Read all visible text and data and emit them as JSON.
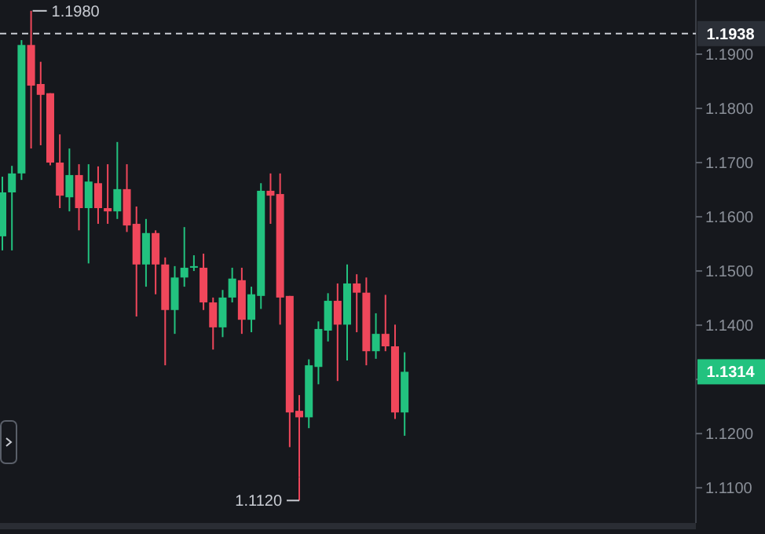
{
  "chart_data": {
    "type": "candlestick",
    "categories": [
      null,
      null,
      null,
      null,
      null,
      null,
      null,
      null,
      null,
      null,
      null,
      null,
      null,
      null,
      null,
      null,
      null,
      null,
      null,
      null,
      null,
      null,
      null,
      null,
      null,
      null,
      null,
      null,
      null,
      null,
      null,
      null,
      null,
      null,
      null,
      null,
      null,
      null,
      null,
      null,
      null,
      null,
      null,
      null,
      null,
      null,
      null,
      null,
      null,
      null,
      null,
      null,
      null,
      null,
      null,
      null,
      null,
      null,
      null,
      null,
      null,
      null,
      null,
      null,
      null,
      null,
      null,
      null,
      null,
      null,
      null,
      null,
      null
    ],
    "ohlc": [
      [
        1.1564,
        1.1674,
        1.1538,
        1.1645
      ],
      [
        1.1645,
        1.1694,
        1.1538,
        1.168
      ],
      [
        1.168,
        1.1926,
        1.1668,
        1.1917
      ],
      [
        1.1917,
        1.198,
        1.1726,
        1.1842
      ],
      [
        1.1845,
        1.1886,
        1.1732,
        1.1825
      ],
      [
        1.1828,
        1.1828,
        1.1695,
        1.17
      ],
      [
        1.17,
        1.1752,
        1.1616,
        1.1639
      ],
      [
        1.1636,
        1.1726,
        1.161,
        1.1677
      ],
      [
        1.1677,
        1.1697,
        1.1575,
        1.1616
      ],
      [
        1.1616,
        1.1697,
        1.1514,
        1.1665
      ],
      [
        1.1662,
        1.1693,
        1.1587,
        1.1616
      ],
      [
        1.1616,
        1.1697,
        1.1587,
        1.161
      ],
      [
        1.161,
        1.1738,
        1.1596,
        1.1651
      ],
      [
        1.1651,
        1.1697,
        1.1572,
        1.1584
      ],
      [
        1.1587,
        1.1619,
        1.1416,
        1.1512
      ],
      [
        1.1512,
        1.1596,
        1.1471,
        1.157
      ],
      [
        1.157,
        1.1575,
        1.1457,
        1.1512
      ],
      [
        1.1512,
        1.1525,
        1.1326,
        1.1428
      ],
      [
        1.1428,
        1.1509,
        1.1384,
        1.1488
      ],
      [
        1.1488,
        1.1581,
        1.1471,
        1.1506
      ],
      [
        1.1506,
        1.1529,
        1.15,
        1.1509
      ],
      [
        1.1506,
        1.1532,
        1.1428,
        1.1442
      ],
      [
        1.1442,
        1.1451,
        1.1355,
        1.1396
      ],
      [
        1.1396,
        1.1465,
        1.1378,
        1.1451
      ],
      [
        1.1451,
        1.1506,
        1.1442,
        1.1486
      ],
      [
        1.1483,
        1.1506,
        1.1384,
        1.141
      ],
      [
        1.141,
        1.1471,
        1.1387,
        1.1457
      ],
      [
        1.1454,
        1.1662,
        1.143,
        1.1648
      ],
      [
        1.1648,
        1.168,
        1.1587,
        1.1639
      ],
      [
        1.1642,
        1.168,
        1.1401,
        1.1451
      ],
      [
        1.1454,
        1.1454,
        1.1175,
        1.1239
      ],
      [
        1.1242,
        1.1271,
        1.112,
        1.123
      ],
      [
        1.123,
        1.1337,
        1.121,
        1.1326
      ],
      [
        1.1323,
        1.1407,
        1.1291,
        1.1393
      ],
      [
        1.139,
        1.1459,
        1.137,
        1.1445
      ],
      [
        1.1445,
        1.1477,
        1.1297,
        1.1401
      ],
      [
        1.1401,
        1.1512,
        1.1335,
        1.1477
      ],
      [
        1.1477,
        1.1494,
        1.1387,
        1.146
      ],
      [
        1.146,
        1.1488,
        1.1326,
        1.1352
      ],
      [
        1.1352,
        1.1422,
        1.1338,
        1.1384
      ],
      [
        1.1384,
        1.1456,
        1.1352,
        1.1361
      ],
      [
        1.1361,
        1.1401,
        1.1227,
        1.1239
      ],
      [
        1.1239,
        1.135,
        1.1196,
        1.1314
      ],
      null,
      null,
      null,
      null,
      null,
      null,
      null,
      null,
      null,
      null,
      null,
      null,
      null,
      null,
      null,
      null,
      null,
      null,
      null,
      null,
      null,
      null,
      null,
      null,
      null,
      null,
      null,
      null,
      null,
      null
    ],
    "colors": [
      "#22c27f",
      "#22c27f",
      "#22c27f",
      "#f0475b",
      "#f0475b",
      "#f0475b",
      "#f0475b",
      "#22c27f",
      "#f0475b",
      "#22c27f",
      "#f0475b",
      "#f0475b",
      "#22c27f",
      "#f0475b",
      "#f0475b",
      "#22c27f",
      "#f0475b",
      "#f0475b",
      "#22c27f",
      "#22c27f",
      "#22c27f",
      "#f0475b",
      "#f0475b",
      "#22c27f",
      "#22c27f",
      "#f0475b",
      "#22c27f",
      "#22c27f",
      "#f0475b",
      "#f0475b",
      "#f0475b",
      "#f0475b",
      "#22c27f",
      "#22c27f",
      "#22c27f",
      "#f0475b",
      "#22c27f",
      "#f0475b",
      "#f0475b",
      "#22c27f",
      "#f0475b",
      "#f0475b",
      "#22c27f",
      null,
      null,
      null,
      null,
      null,
      null,
      null,
      null,
      null,
      null,
      null,
      null,
      null,
      null,
      null,
      null,
      null,
      null,
      null,
      null,
      null,
      null,
      null,
      null,
      null,
      null,
      null,
      null,
      null,
      null
    ],
    "ylim": [
      1.1035,
      1.2
    ],
    "yticks": [
      {
        "value": 1.11,
        "label": "1.1100"
      },
      {
        "value": 1.12,
        "label": "1.1200"
      },
      {
        "value": 1.13,
        "label": null
      },
      {
        "value": 1.14,
        "label": "1.1400"
      },
      {
        "value": 1.15,
        "label": "1.1500"
      },
      {
        "value": 1.16,
        "label": "1.1600"
      },
      {
        "value": 1.17,
        "label": "1.1700"
      },
      {
        "value": 1.18,
        "label": "1.1800"
      },
      {
        "value": 1.19,
        "label": "1.1900"
      }
    ],
    "ref_lines": [
      {
        "axis": "y",
        "value": 1.1938,
        "label": "1.1938",
        "color": "#c9ccd3",
        "line_style": "dashed"
      }
    ],
    "annotations": [
      "1.1980",
      "1.1120",
      {
        "text": "1.1314",
        "y": 1.1314
      }
    ],
    "tick_labels": "y",
    "grid": false
  }
}
